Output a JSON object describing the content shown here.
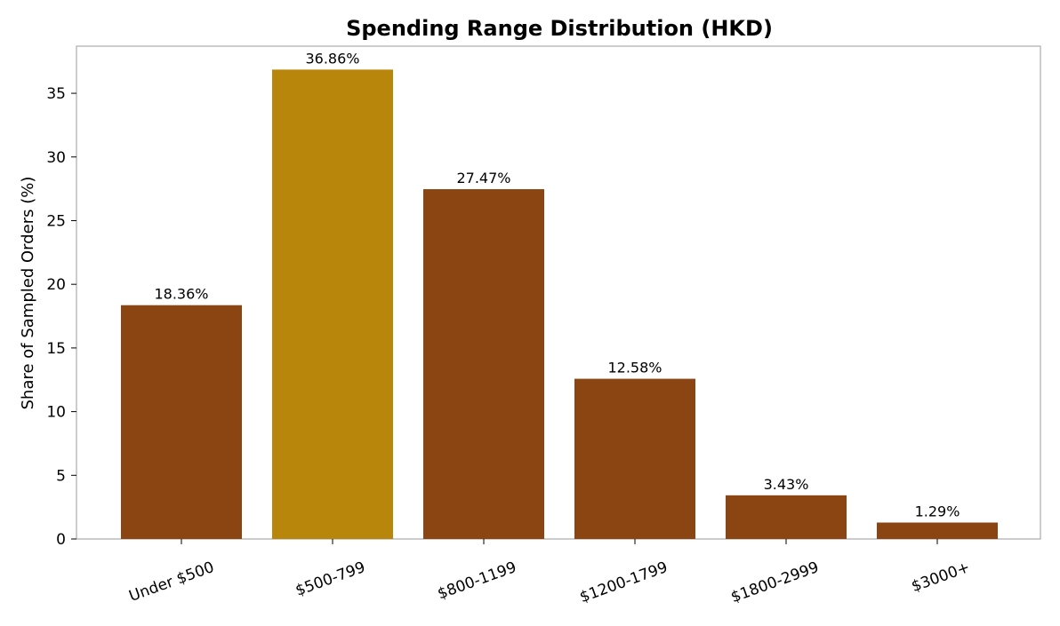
{
  "chart_data": {
    "type": "bar",
    "title": "Spending Range Distribution (HKD)",
    "xlabel": "",
    "ylabel": "Share of Sampled Orders (%)",
    "categories": [
      "Under $500",
      "$500-799",
      "$800-1199",
      "$1200-1799",
      "$1800-2999",
      "$3000+"
    ],
    "values": [
      18.36,
      36.86,
      27.47,
      12.58,
      3.43,
      1.29
    ],
    "data_labels": [
      "18.36%",
      "36.86%",
      "27.47%",
      "12.58%",
      "3.43%",
      "1.29%"
    ],
    "bar_colors": [
      "#8B4513",
      "#B8860B",
      "#8B4513",
      "#8B4513",
      "#8B4513",
      "#8B4513"
    ],
    "highlight_index": 1,
    "ylim": [
      0,
      38.7
    ],
    "yticks": [
      0,
      5,
      10,
      15,
      20,
      25,
      30,
      35
    ],
    "x_tick_rotation": "rotated ~20 degrees",
    "grid": false,
    "legend": "none",
    "colors": {
      "bar": "#8B4513",
      "highlight": "#B8860B",
      "axes_frame": "#aaaaaa",
      "text": "#000000"
    }
  }
}
